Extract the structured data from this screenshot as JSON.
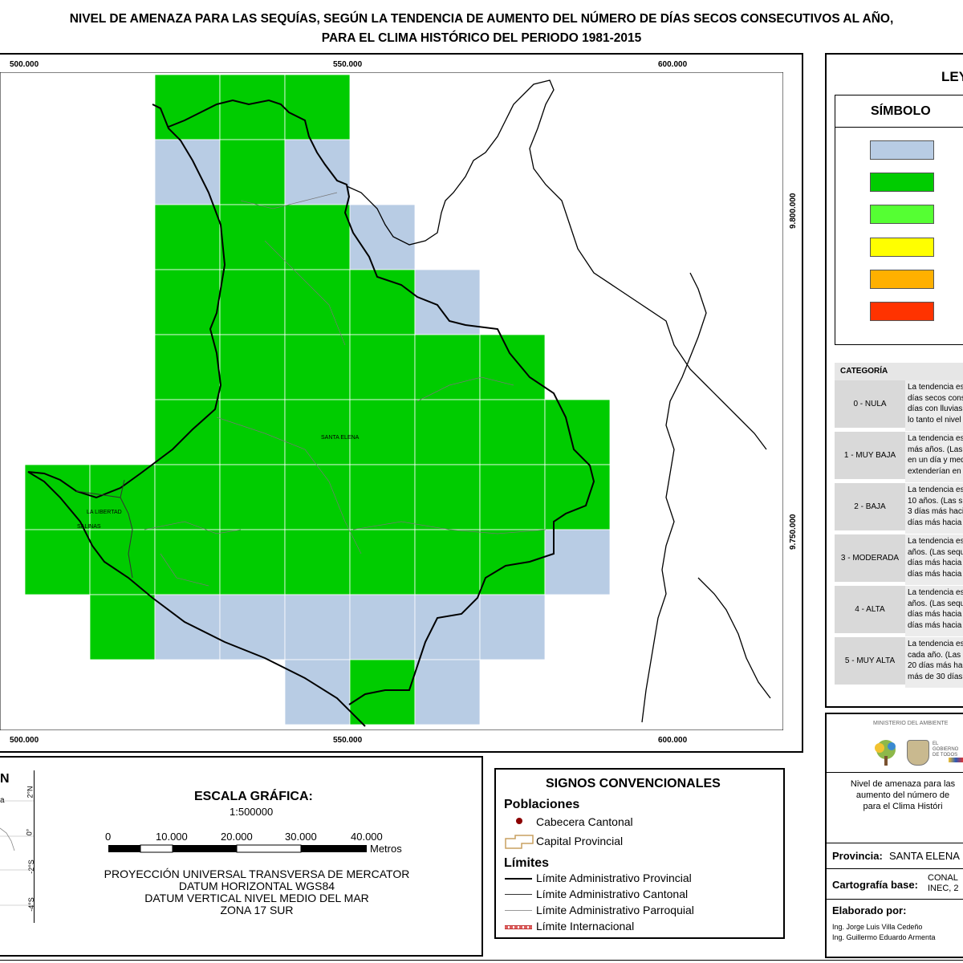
{
  "title": {
    "line1": "NIVEL DE AMENAZA PARA LAS SEQUÍAS, SEGÚN LA TENDENCIA DE AUMENTO DEL NÚMERO DE DÍAS SECOS CONSECUTIVOS AL AÑO,",
    "line2": "PARA EL CLIMA HISTÓRICO DEL PERIODO 1981-2015"
  },
  "map": {
    "x_ticks_top": [
      "500.000",
      "550.000",
      "600.000"
    ],
    "x_ticks_bottom": [
      "500.000",
      "550.000",
      "600.000"
    ],
    "y_ticks": [
      "9.800.000",
      "9.750.000"
    ],
    "place_labels": {
      "santa_elena": "SANTA ELENA",
      "la_libertad": "LA LIBERTAD",
      "salinas": "SALINAS"
    },
    "grid_columns": [
      "x1",
      "x2",
      "x3",
      "x4",
      "x5",
      "x6",
      "x7",
      "x8",
      "x9"
    ],
    "grid_cells": [
      [
        2,
        0,
        "green"
      ],
      [
        3,
        0,
        "green"
      ],
      [
        4,
        0,
        "green"
      ],
      [
        2,
        1,
        "blue"
      ],
      [
        3,
        1,
        "green"
      ],
      [
        4,
        1,
        "blue"
      ],
      [
        2,
        2,
        "green"
      ],
      [
        3,
        2,
        "green"
      ],
      [
        4,
        2,
        "green"
      ],
      [
        5,
        2,
        "blue"
      ],
      [
        2,
        3,
        "green"
      ],
      [
        3,
        3,
        "green"
      ],
      [
        4,
        3,
        "green"
      ],
      [
        5,
        3,
        "green"
      ],
      [
        6,
        3,
        "blue"
      ],
      [
        2,
        4,
        "green"
      ],
      [
        3,
        4,
        "green"
      ],
      [
        4,
        4,
        "green"
      ],
      [
        5,
        4,
        "green"
      ],
      [
        6,
        4,
        "green"
      ],
      [
        7,
        4,
        "green"
      ],
      [
        2,
        5,
        "green"
      ],
      [
        3,
        5,
        "green"
      ],
      [
        4,
        5,
        "green"
      ],
      [
        5,
        5,
        "green"
      ],
      [
        6,
        5,
        "green"
      ],
      [
        7,
        5,
        "green"
      ],
      [
        8,
        5,
        "green"
      ],
      [
        0,
        6,
        "green"
      ],
      [
        1,
        6,
        "green"
      ],
      [
        2,
        6,
        "green"
      ],
      [
        3,
        6,
        "green"
      ],
      [
        4,
        6,
        "green"
      ],
      [
        5,
        6,
        "green"
      ],
      [
        6,
        6,
        "green"
      ],
      [
        7,
        6,
        "green"
      ],
      [
        8,
        6,
        "green"
      ],
      [
        0,
        7,
        "green"
      ],
      [
        1,
        7,
        "green"
      ],
      [
        2,
        7,
        "green"
      ],
      [
        3,
        7,
        "green"
      ],
      [
        4,
        7,
        "green"
      ],
      [
        5,
        7,
        "green"
      ],
      [
        6,
        7,
        "green"
      ],
      [
        7,
        7,
        "green"
      ],
      [
        8,
        7,
        "blue"
      ],
      [
        1,
        8,
        "green"
      ],
      [
        2,
        8,
        "blue"
      ],
      [
        3,
        8,
        "blue"
      ],
      [
        4,
        8,
        "blue"
      ],
      [
        5,
        8,
        "blue"
      ],
      [
        6,
        8,
        "blue"
      ],
      [
        7,
        8,
        "blue"
      ],
      [
        4,
        9,
        "blue"
      ],
      [
        5,
        9,
        "green"
      ],
      [
        6,
        9,
        "blue"
      ]
    ],
    "colors": {
      "blue": "#b8cce4",
      "green": "#00cc00"
    }
  },
  "legend": {
    "title": "LEYENDA",
    "symbol_header": "SÍMBOLO",
    "swatches": [
      {
        "category": "0 - NULA",
        "color": "#b8cce4"
      },
      {
        "category": "1 - MUY BAJA",
        "color": "#00cc00"
      },
      {
        "category": "2 - BAJA",
        "color": "#55ff33"
      },
      {
        "category": "3 - MODERADA",
        "color": "#ffff00"
      },
      {
        "category": "4 - ALTA",
        "color": "#ffb000"
      },
      {
        "category": "5 - MUY ALTA",
        "color": "#ff3300"
      }
    ],
    "category_header": "CATEGORÍA",
    "rows": [
      {
        "cat": "0 - NULA",
        "desc": [
          "La tendencia es",
          "días secos cons",
          "días con lluvias",
          "lo tanto el nivel"
        ]
      },
      {
        "cat": "1 - MUY BAJA",
        "desc": [
          "La tendencia es",
          "más años. (Las",
          "en un día y med",
          "extenderían en"
        ]
      },
      {
        "cat": "2 - BAJA",
        "desc": [
          "La tendencia es",
          "10 años. (Las s",
          "3 días más haci",
          "días más hacia"
        ]
      },
      {
        "cat": "3 - MODERADA",
        "desc": [
          "La tendencia es",
          "años. (Las sequ",
          "días más hacia",
          "días más hacia"
        ]
      },
      {
        "cat": "4 - ALTA",
        "desc": [
          "La tendencia es",
          "años. (Las sequ",
          "días más hacia",
          "días más hacia"
        ]
      },
      {
        "cat": "5 - MUY ALTA",
        "desc": [
          "La tendencia es",
          "cada año. (Las",
          "20 días más ha",
          "más de 30 días"
        ]
      }
    ]
  },
  "locator": {
    "title": "N",
    "lat_labels": [
      "2°N",
      "0°",
      "-2°S",
      "-4°S"
    ],
    "partial_label": "a"
  },
  "scale": {
    "title": "ESCALA GRÁFICA:",
    "ratio": "1:500000",
    "ticks": [
      "0",
      "10.000",
      "20.000",
      "30.000",
      "40.000"
    ],
    "unit": "Metros",
    "projection": [
      "PROYECCIÓN UNIVERSAL TRANSVERSA DE MERCATOR",
      "DATUM HORIZONTAL WGS84",
      "DATUM VERTICAL NIVEL MEDIO DEL MAR",
      "ZONA 17 SUR"
    ]
  },
  "signos": {
    "title": "SIGNOS CONVENCIONALES",
    "poblaciones_header": "Poblaciones",
    "cabecera": "Cabecera Cantonal",
    "capital": "Capital Provincial",
    "limites_header": "Límites",
    "lim_provincial": "Límite Administrativo Provincial",
    "lim_cantonal": "Límite Administrativo Cantonal",
    "lim_parroquial": "Límite Administrativo Parroquial",
    "lim_internacional": "Límite Internacional"
  },
  "info": {
    "ministerio": "MINISTERIO DEL AMBIENTE",
    "gobierno_line1": "EL",
    "gobierno_line2": "GOBIERNO",
    "gobierno_line3": "DE TODOS",
    "description": [
      "Nivel de amenaza para las",
      "aumento del número de",
      "para el Clima Históri"
    ],
    "provincia_label": "Provincia:",
    "provincia_value": "SANTA ELENA",
    "cartografia_label": "Cartografía base:",
    "cartografia_value1": "CONAL",
    "cartografia_value2": "INEC, 2",
    "elaborado_label": "Elaborado por:",
    "autor1": "Ing. Jorge Luis Villa Cedeño",
    "autor2": "Ing. Guillermo Eduardo Armenta"
  }
}
